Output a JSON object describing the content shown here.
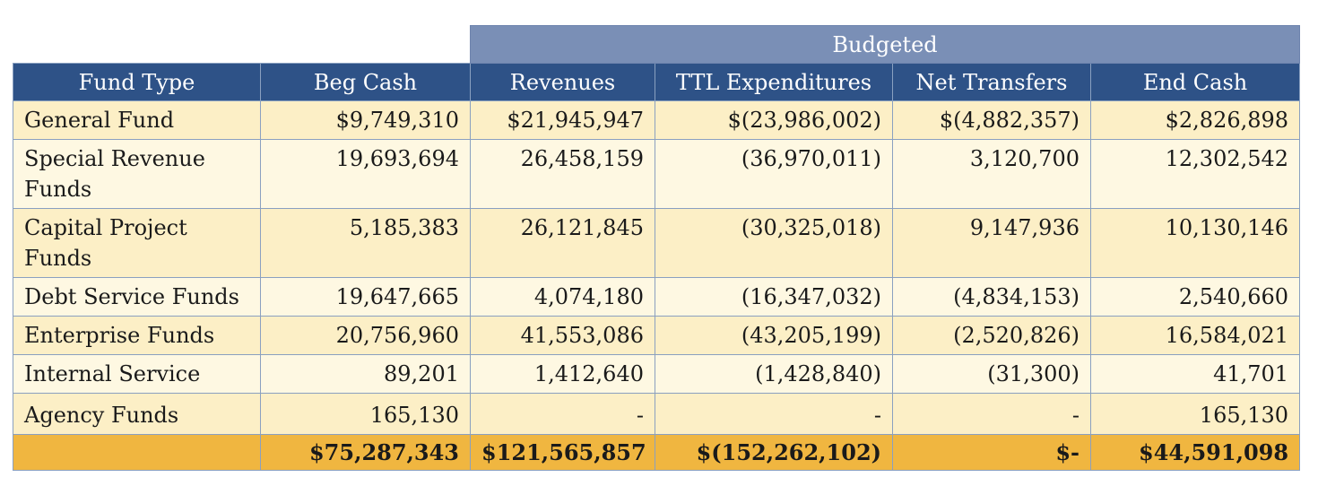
{
  "table": {
    "group_header": "Budgeted",
    "columns": [
      "Fund Type",
      "Beg Cash",
      "Revenues",
      "TTL Expenditures",
      "Net Transfers",
      "End Cash"
    ],
    "rows": [
      {
        "fund": "General Fund",
        "beg_cash": "$9,749,310",
        "revenues": "$21,945,947",
        "expenditures": "$(23,986,002)",
        "transfers": "$(4,882,357)",
        "end_cash": "$2,826,898"
      },
      {
        "fund": "Special Revenue Funds",
        "beg_cash": "19,693,694",
        "revenues": "26,458,159",
        "expenditures": "(36,970,011)",
        "transfers": "3,120,700",
        "end_cash": "12,302,542"
      },
      {
        "fund": "Capital Project Funds",
        "beg_cash": "5,185,383",
        "revenues": "26,121,845",
        "expenditures": "(30,325,018)",
        "transfers": "9,147,936",
        "end_cash": "10,130,146"
      },
      {
        "fund": "Debt Service Funds",
        "beg_cash": "19,647,665",
        "revenues": "4,074,180",
        "expenditures": "(16,347,032)",
        "transfers": "(4,834,153)",
        "end_cash": "2,540,660"
      },
      {
        "fund": "Enterprise Funds",
        "beg_cash": "20,756,960",
        "revenues": "41,553,086",
        "expenditures": "(43,205,199)",
        "transfers": "(2,520,826)",
        "end_cash": "16,584,021"
      },
      {
        "fund": "Internal Service",
        "beg_cash": "89,201",
        "revenues": "1,412,640",
        "expenditures": "(1,428,840)",
        "transfers": "(31,300)",
        "end_cash": "41,701"
      },
      {
        "fund": "Agency Funds",
        "beg_cash": "165,130",
        "revenues": "-",
        "expenditures": "-",
        "transfers": "-",
        "end_cash": "165,130"
      }
    ],
    "totals": {
      "fund": "",
      "beg_cash": "$75,287,343",
      "revenues": "$121,565,857",
      "expenditures": "$(152,262,102)",
      "transfers": "$-",
      "end_cash": "$44,591,098"
    }
  }
}
